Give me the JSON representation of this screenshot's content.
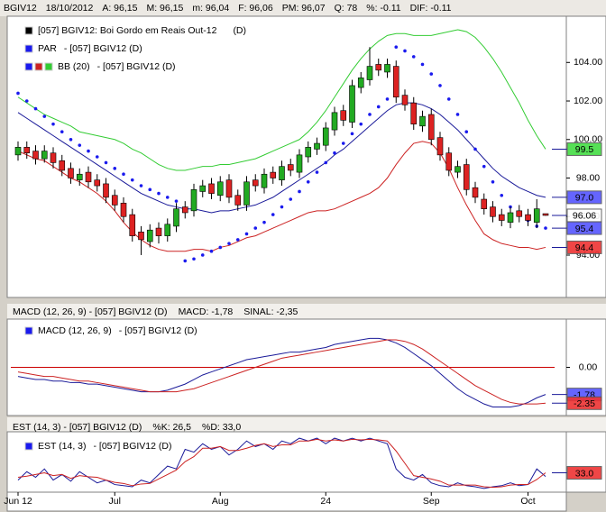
{
  "header": [
    "BGIV12",
    "18/10/2012",
    "A: 96,15",
    "M: 96,15",
    "m: 96,04",
    "F: 96,06",
    "PM: 96,07",
    "Q: 78",
    "%: -0.11",
    "DIF: -0.11"
  ],
  "chart_data": [
    {
      "type": "candlestick",
      "legend": [
        {
          "text": "[057] BGIV12: Boi Gordo em Reais Out-12",
          "note": "(D)"
        },
        {
          "text": "PAR",
          "note": "- [057] BGIV12 (D)"
        },
        {
          "text": "BB (20)",
          "note": "- [057] BGIV12 (D)"
        }
      ],
      "categories": [
        "Jun 12",
        null,
        null,
        null,
        null,
        null,
        null,
        null,
        null,
        null,
        null,
        "Jul",
        null,
        null,
        null,
        null,
        null,
        null,
        null,
        null,
        null,
        null,
        null,
        "Aug",
        null,
        null,
        null,
        null,
        null,
        null,
        null,
        null,
        null,
        null,
        null,
        "24",
        null,
        null,
        null,
        null,
        null,
        null,
        null,
        null,
        null,
        null,
        null,
        "Sep",
        null,
        null,
        null,
        null,
        null,
        null,
        null,
        null,
        null,
        null,
        "Oct",
        null,
        null
      ],
      "open": [
        99.2,
        99.6,
        99.4,
        99.0,
        99.3,
        98.9,
        98.5,
        97.9,
        98.3,
        97.9,
        97.7,
        97.1,
        96.7,
        96.1,
        95.2,
        94.7,
        95.4,
        95.0,
        95.5,
        96.5,
        96.3,
        97.3,
        97.7,
        97.1,
        97.9,
        97.1,
        96.6,
        97.9,
        97.5,
        98.3,
        97.9,
        98.7,
        98.3,
        99.1,
        99.5,
        99.7,
        100.5,
        101.5,
        100.9,
        102.7,
        103.1,
        103.9,
        103.5,
        103.8,
        102.3,
        101.9,
        100.7,
        101.3,
        100.1,
        99.3,
        98.3,
        98.7,
        97.5,
        96.9,
        96.5,
        96.1,
        95.7,
        96.3,
        96.1,
        95.7,
        96.15
      ],
      "high": [
        99.9,
        99.9,
        99.7,
        99.7,
        99.6,
        99.2,
        98.8,
        98.5,
        98.6,
        98.2,
        98.0,
        97.4,
        97.0,
        96.4,
        95.5,
        95.6,
        95.7,
        95.9,
        96.7,
        96.8,
        97.7,
        97.9,
        98.0,
        98.1,
        98.2,
        97.4,
        98.1,
        98.2,
        98.5,
        98.6,
        98.9,
        99.0,
        99.5,
        99.9,
        100.1,
        100.9,
        101.7,
        101.8,
        103.1,
        103.5,
        104.8,
        104.2,
        104.2,
        104.1,
        102.6,
        102.2,
        101.5,
        101.6,
        100.4,
        99.6,
        98.9,
        99.0,
        97.8,
        97.2,
        96.8,
        96.4,
        96.5,
        96.6,
        96.4,
        96.9,
        96.15
      ],
      "low": [
        98.9,
        99.0,
        98.7,
        98.8,
        98.5,
        98.1,
        97.7,
        97.6,
        97.5,
        97.3,
        96.7,
        96.3,
        95.7,
        94.7,
        94.0,
        94.4,
        94.6,
        94.7,
        95.2,
        95.9,
        96.0,
        97.0,
        96.9,
        96.8,
        96.7,
        96.3,
        96.3,
        97.3,
        97.2,
        97.7,
        97.6,
        98.1,
        98.0,
        98.8,
        99.2,
        99.4,
        100.2,
        100.7,
        100.6,
        102.4,
        102.8,
        103.3,
        103.2,
        101.9,
        101.5,
        100.5,
        100.4,
        99.7,
        98.9,
        98.1,
        98.0,
        97.1,
        96.7,
        96.1,
        95.7,
        95.5,
        95.4,
        95.7,
        95.5,
        95.4,
        96.04
      ],
      "close": [
        99.6,
        99.3,
        99.0,
        99.4,
        98.8,
        98.4,
        98.0,
        98.2,
        97.8,
        97.6,
        97.0,
        96.6,
        96.0,
        95.0,
        94.8,
        95.3,
        95.0,
        95.6,
        96.4,
        96.2,
        97.4,
        97.6,
        97.2,
        97.8,
        97.0,
        96.6,
        97.8,
        97.6,
        98.2,
        98.0,
        98.6,
        98.4,
        99.2,
        99.6,
        99.8,
        100.6,
        101.4,
        101.0,
        102.8,
        103.2,
        103.8,
        103.6,
        103.9,
        102.2,
        101.8,
        100.8,
        101.2,
        100.0,
        99.2,
        98.4,
        98.6,
        97.4,
        97.0,
        96.4,
        96.0,
        95.8,
        96.2,
        96.0,
        95.8,
        96.4,
        96.06
      ],
      "up_color": "#22aa22",
      "down_color": "#dd2222",
      "overlays": [
        {
          "style": "line",
          "color": "#33cc33",
          "values": [
            102.2,
            101.9,
            101.6,
            101.3,
            101.1,
            100.9,
            100.7,
            100.4,
            100.3,
            100.2,
            100.1,
            100.0,
            99.8,
            99.5,
            99.3,
            99.0,
            98.7,
            98.5,
            98.4,
            98.4,
            98.5,
            98.6,
            98.6,
            98.7,
            98.7,
            98.8,
            98.9,
            99.0,
            99.2,
            99.4,
            99.6,
            99.8,
            100.0,
            100.4,
            100.9,
            101.5,
            102.2,
            102.9,
            103.6,
            104.2,
            104.7,
            105.1,
            105.4,
            105.5,
            105.5,
            105.4,
            105.4,
            105.4,
            105.5,
            105.6,
            105.7,
            105.6,
            105.3,
            104.8,
            104.2,
            103.5,
            102.7,
            101.9,
            101.0,
            100.2,
            99.5
          ]
        },
        {
          "style": "line",
          "color": "#1a1a99",
          "values": [
            101.4,
            101.1,
            100.8,
            100.5,
            100.2,
            99.9,
            99.6,
            99.3,
            99.0,
            98.7,
            98.4,
            98.1,
            97.8,
            97.5,
            97.2,
            97.0,
            96.8,
            96.6,
            96.5,
            96.4,
            96.4,
            96.3,
            96.2,
            96.3,
            96.3,
            96.4,
            96.5,
            96.6,
            96.8,
            97.0,
            97.3,
            97.6,
            97.9,
            98.2,
            98.5,
            98.8,
            99.2,
            99.5,
            99.9,
            100.3,
            100.7,
            101.1,
            101.5,
            101.8,
            101.9,
            101.9,
            101.8,
            101.6,
            101.3,
            100.9,
            100.5,
            100.0,
            99.5,
            99.0,
            98.5,
            98.1,
            97.8,
            97.5,
            97.3,
            97.1,
            97.0
          ]
        },
        {
          "style": "line",
          "color": "#cc2222",
          "values": [
            99.4,
            99.2,
            99.0,
            98.9,
            98.6,
            98.3,
            98.0,
            97.8,
            97.5,
            97.2,
            96.8,
            96.3,
            95.7,
            95.2,
            94.8,
            94.5,
            94.3,
            94.2,
            94.2,
            94.2,
            94.3,
            94.3,
            94.2,
            94.4,
            94.5,
            94.7,
            94.9,
            95.0,
            95.2,
            95.4,
            95.6,
            95.8,
            96.0,
            96.2,
            96.3,
            96.3,
            96.4,
            96.6,
            96.8,
            97.0,
            97.2,
            97.5,
            98.0,
            98.7,
            99.3,
            99.8,
            99.9,
            99.8,
            99.3,
            98.5,
            97.5,
            96.6,
            95.8,
            95.1,
            94.8,
            94.6,
            94.5,
            94.4,
            94.4,
            94.3,
            94.4
          ]
        },
        {
          "style": "dots",
          "color": "#1a1aee",
          "values": [
            102.4,
            102.0,
            101.6,
            101.2,
            100.8,
            100.4,
            100.0,
            99.7,
            99.4,
            99.1,
            98.8,
            98.5,
            98.2,
            97.9,
            97.6,
            97.4,
            97.2,
            97.0,
            96.8,
            93.7,
            93.8,
            94.0,
            94.2,
            94.4,
            94.6,
            94.8,
            95.1,
            95.4,
            95.7,
            96.1,
            96.5,
            96.9,
            97.3,
            97.8,
            98.3,
            98.8,
            99.3,
            99.8,
            100.3,
            100.8,
            101.3,
            101.7,
            102.1,
            104.8,
            104.6,
            104.3,
            103.9,
            103.4,
            102.8,
            102.1,
            101.3,
            100.4,
            99.5,
            98.6,
            97.8,
            97.1,
            96.5,
            96.1,
            95.8,
            95.5,
            95.4
          ]
        }
      ],
      "ylim": [
        91.8,
        106.4
      ],
      "yticks": [
        {
          "value": 94,
          "label": "94.00"
        },
        {
          "value": 96,
          "label": "96.00"
        },
        {
          "value": 98,
          "label": "98.00"
        },
        {
          "value": 100,
          "label": "100.00"
        },
        {
          "value": 102,
          "label": "102.00"
        },
        {
          "value": 104,
          "label": "104.00"
        }
      ],
      "last_tags": [
        {
          "value": 99.5,
          "label": "99.5",
          "color": "#44dd44"
        },
        {
          "value": 97.0,
          "label": "97.0",
          "color": "#5555ff"
        },
        {
          "value": 96.06,
          "label": "96.06",
          "color": "#ffffff"
        },
        {
          "value": 95.4,
          "label": "95.4",
          "color": "#5555ff"
        },
        {
          "value": 94.4,
          "label": "94.4",
          "color": "#ee3333"
        }
      ]
    },
    {
      "type": "line",
      "title": [
        {
          "text": "MACD (12, 26, 9) - [057] BGIV12 (D)",
          "color": "#1a1aaa"
        },
        {
          "text": "MACD: -1,78",
          "color": "#1a1aaa"
        },
        {
          "text": "SINAL: -2,35",
          "color": "#cc0000"
        }
      ],
      "legend": [
        {
          "text": "MACD (12, 26, 9)",
          "note": "- [057] BGIV12 (D)"
        }
      ],
      "series": [
        {
          "color": "#1a1a99",
          "values": [
            -0.6,
            -0.7,
            -0.8,
            -0.8,
            -0.9,
            -0.9,
            -1.0,
            -1.0,
            -1.1,
            -1.1,
            -1.2,
            -1.3,
            -1.4,
            -1.5,
            -1.6,
            -1.6,
            -1.6,
            -1.5,
            -1.3,
            -1.1,
            -0.8,
            -0.5,
            -0.3,
            -0.1,
            0.1,
            0.3,
            0.5,
            0.6,
            0.7,
            0.8,
            0.9,
            1.0,
            1.0,
            1.1,
            1.2,
            1.3,
            1.5,
            1.6,
            1.7,
            1.8,
            1.9,
            1.9,
            1.8,
            1.6,
            1.3,
            0.9,
            0.5,
            0.1,
            -0.4,
            -0.9,
            -1.4,
            -1.8,
            -2.1,
            -2.4,
            -2.6,
            -2.6,
            -2.6,
            -2.5,
            -2.3,
            -2.0,
            -1.78
          ]
        },
        {
          "color": "#cc2222",
          "values": [
            -0.3,
            -0.4,
            -0.5,
            -0.6,
            -0.6,
            -0.7,
            -0.8,
            -0.9,
            -0.9,
            -1.0,
            -1.1,
            -1.2,
            -1.3,
            -1.4,
            -1.5,
            -1.6,
            -1.6,
            -1.6,
            -1.6,
            -1.5,
            -1.4,
            -1.2,
            -1.0,
            -0.8,
            -0.6,
            -0.4,
            -0.2,
            0.0,
            0.2,
            0.4,
            0.6,
            0.7,
            0.8,
            0.9,
            1.0,
            1.1,
            1.2,
            1.3,
            1.4,
            1.5,
            1.6,
            1.7,
            1.8,
            1.8,
            1.7,
            1.5,
            1.2,
            0.8,
            0.4,
            0.0,
            -0.4,
            -0.8,
            -1.2,
            -1.5,
            -1.8,
            -2.1,
            -2.3,
            -2.4,
            -2.4,
            -2.4,
            -2.35
          ]
        }
      ],
      "ylim": [
        -3.1,
        3.1
      ],
      "yticks": [
        {
          "value": 0,
          "label": "0.00"
        }
      ],
      "tick_line_color": "#cc0000",
      "last_tags": [
        {
          "value": -1.78,
          "label": "-1.78",
          "color": "#5555ff"
        },
        {
          "value": -2.35,
          "label": "-2.35",
          "color": "#ee3333"
        }
      ]
    },
    {
      "type": "line",
      "title": [
        {
          "text": "EST (14, 3) - [057] BGIV12 (D)",
          "color": "#1a1aaa"
        },
        {
          "text": "%K: 26,5",
          "color": "#1a1aaa"
        },
        {
          "text": "%D: 33,0",
          "color": "#cc0000"
        }
      ],
      "legend": [
        {
          "text": "EST (14, 3)",
          "note": "- [057] BGIV12 (D)"
        }
      ],
      "series": [
        {
          "color": "#1a1a99",
          "values": [
            20,
            35,
            25,
            40,
            20,
            30,
            18,
            35,
            25,
            15,
            20,
            12,
            10,
            8,
            20,
            15,
            30,
            45,
            40,
            75,
            70,
            85,
            75,
            80,
            65,
            75,
            90,
            80,
            85,
            75,
            90,
            85,
            95,
            90,
            95,
            85,
            95,
            90,
            95,
            90,
            95,
            90,
            85,
            40,
            25,
            20,
            30,
            15,
            10,
            8,
            15,
            10,
            8,
            5,
            8,
            10,
            15,
            10,
            12,
            40,
            26.5
          ]
        },
        {
          "color": "#cc2222",
          "values": [
            25,
            27,
            30,
            33,
            28,
            30,
            23,
            28,
            26,
            25,
            20,
            16,
            14,
            10,
            13,
            14,
            22,
            30,
            38,
            53,
            62,
            77,
            77,
            80,
            73,
            73,
            77,
            82,
            85,
            80,
            83,
            83,
            90,
            90,
            93,
            90,
            92,
            90,
            93,
            92,
            93,
            92,
            90,
            72,
            50,
            28,
            25,
            22,
            18,
            11,
            11,
            11,
            11,
            8,
            7,
            8,
            11,
            12,
            12,
            21,
            33.0
          ]
        }
      ],
      "ylim": [
        0,
        100
      ],
      "last_tags": [
        {
          "value": 33.0,
          "label": "33.0",
          "color": "#ee3333"
        }
      ]
    }
  ]
}
